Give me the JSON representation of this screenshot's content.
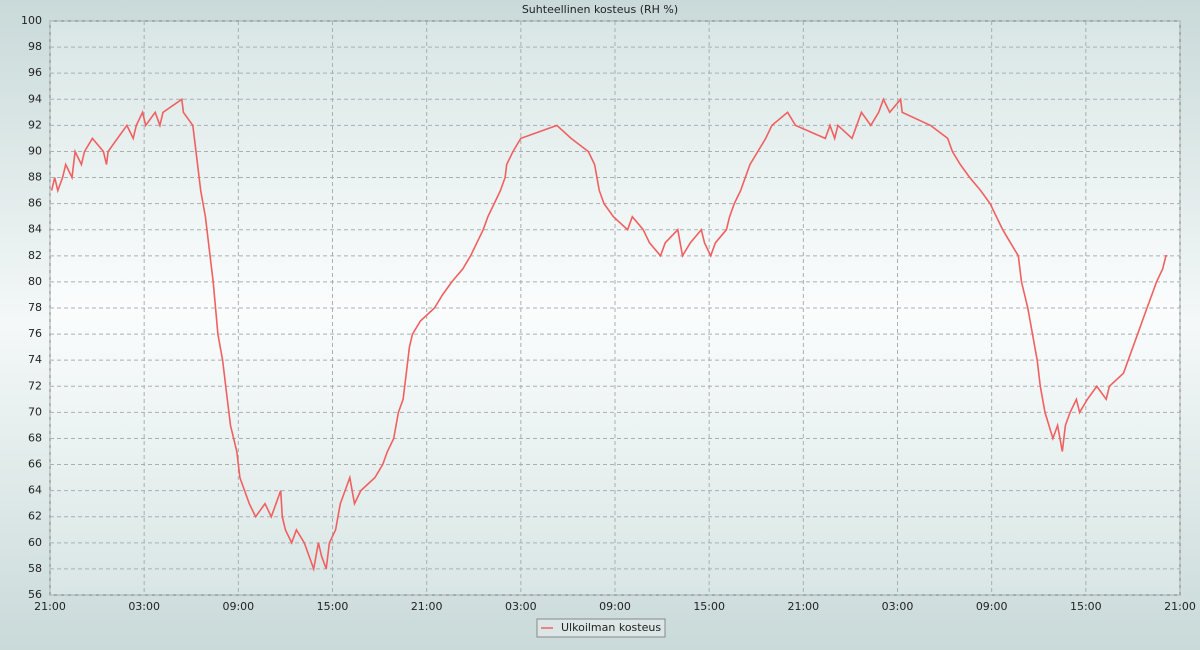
{
  "chart_data": {
    "type": "line",
    "title": "Suhteellinen kosteus (RH %)",
    "x": [
      0.1,
      0.3,
      0.5,
      0.8,
      1.0,
      1.4,
      1.6,
      2.0,
      2.2,
      2.7,
      3.4,
      3.6,
      3.7,
      4.3,
      4.9,
      5.3,
      5.5,
      5.9,
      6.1,
      6.7,
      7.0,
      7.2,
      8.4,
      8.5,
      9.1,
      9.3,
      9.6,
      9.9,
      10.1,
      10.4,
      10.7,
      11.0,
      11.3,
      11.5,
      11.9,
      12.1,
      12.4,
      12.7,
      13.1,
      13.7,
      14.1,
      14.4,
      14.7,
      14.8,
      15.0,
      15.4,
      15.7,
      16.2,
      16.5,
      16.8,
      17.1,
      17.3,
      17.6,
      17.8,
      18.2,
      18.5,
      18.8,
      19.1,
      19.4,
      19.8,
      20.7,
      21.2,
      21.5,
      21.9,
      22.2,
      22.5,
      22.7,
      22.9,
      23.1,
      23.6,
      24.5,
      25.0,
      25.6,
      26.3,
      26.8,
      27.6,
      27.9,
      28.3,
      28.7,
      29.0,
      29.1,
      29.5,
      30.0,
      32.3,
      33.2,
      34.3,
      34.7,
      35.0,
      35.3,
      35.9,
      36.8,
      37.1,
      37.8,
      38.2,
      38.9,
      39.2,
      40.0,
      40.3,
      40.8,
      41.5,
      41.7,
      42.1,
      42.4,
      43.1,
      43.3,
      43.6,
      44.0,
      44.3,
      44.6,
      45.1,
      45.6,
      46.0,
      47.0,
      47.5,
      49.4,
      49.7,
      50.0,
      50.2,
      51.1,
      51.4,
      51.7,
      52.3,
      52.8,
      53.1,
      53.5,
      54.2,
      54.3,
      56.1,
      57.2,
      57.5,
      58.0,
      58.6,
      59.3,
      59.9,
      60.7,
      61.2,
      61.7,
      61.9,
      62.3,
      62.6,
      62.9,
      63.1,
      63.4,
      63.9,
      64.2,
      64.5,
      64.7,
      65.0,
      65.4,
      65.6,
      66.1,
      66.7,
      67.3,
      67.5,
      68.4,
      68.7,
      69.0,
      69.3,
      69.6,
      69.9,
      70.2,
      70.5,
      70.9,
      71.1,
      71.2
    ],
    "series": [
      {
        "name": "Ulkoilman kosteus",
        "color": "#f06060",
        "values": [
          87,
          88,
          87,
          88,
          89,
          88,
          90,
          89,
          90,
          91,
          90,
          89,
          90,
          91,
          92,
          91,
          92,
          93,
          92,
          93,
          92,
          93,
          94,
          93,
          92,
          90,
          87,
          85,
          83,
          80,
          76,
          74,
          71,
          69,
          67,
          65,
          64,
          63,
          62,
          63,
          62,
          63,
          64,
          62,
          61,
          60,
          61,
          60,
          59,
          58,
          60,
          59,
          58,
          60,
          61,
          63,
          64,
          65,
          63,
          64,
          65,
          66,
          67,
          68,
          70,
          71,
          73,
          75,
          76,
          77,
          78,
          79,
          80,
          81,
          82,
          84,
          85,
          86,
          87,
          88,
          89,
          90,
          91,
          92,
          91,
          90,
          89,
          87,
          86,
          85,
          84,
          85,
          84,
          83,
          82,
          83,
          84,
          82,
          83,
          84,
          83,
          82,
          83,
          84,
          85,
          86,
          87,
          88,
          89,
          90,
          91,
          92,
          93,
          92,
          91,
          92,
          91,
          92,
          91,
          92,
          93,
          92,
          93,
          94,
          93,
          94,
          93,
          92,
          91,
          90,
          89,
          88,
          87,
          86,
          84,
          83,
          82,
          80,
          78,
          76,
          74,
          72,
          70,
          68,
          69,
          67,
          69,
          70,
          71,
          70,
          71,
          72,
          71,
          72,
          73,
          74,
          75,
          76,
          77,
          78,
          79,
          80,
          81,
          82,
          82
        ]
      }
    ],
    "xlim": [
      0,
      72
    ],
    "xticks": [
      {
        "value": 0,
        "label": "21:00"
      },
      {
        "value": 6,
        "label": "03:00"
      },
      {
        "value": 12,
        "label": "09:00"
      },
      {
        "value": 18,
        "label": "15:00"
      },
      {
        "value": 24,
        "label": "21:00"
      },
      {
        "value": 30,
        "label": "03:00"
      },
      {
        "value": 36,
        "label": "09:00"
      },
      {
        "value": 42,
        "label": "15:00"
      },
      {
        "value": 48,
        "label": "21:00"
      },
      {
        "value": 54,
        "label": "03:00"
      },
      {
        "value": 60,
        "label": "09:00"
      },
      {
        "value": 66,
        "label": "15:00"
      },
      {
        "value": 72,
        "label": "21:00"
      }
    ],
    "ylim": [
      56,
      100
    ],
    "yticks": [
      56,
      58,
      60,
      62,
      64,
      66,
      68,
      70,
      72,
      74,
      76,
      78,
      80,
      82,
      84,
      86,
      88,
      90,
      92,
      94,
      96,
      98,
      100
    ],
    "grid": true,
    "legend": "bottom"
  }
}
